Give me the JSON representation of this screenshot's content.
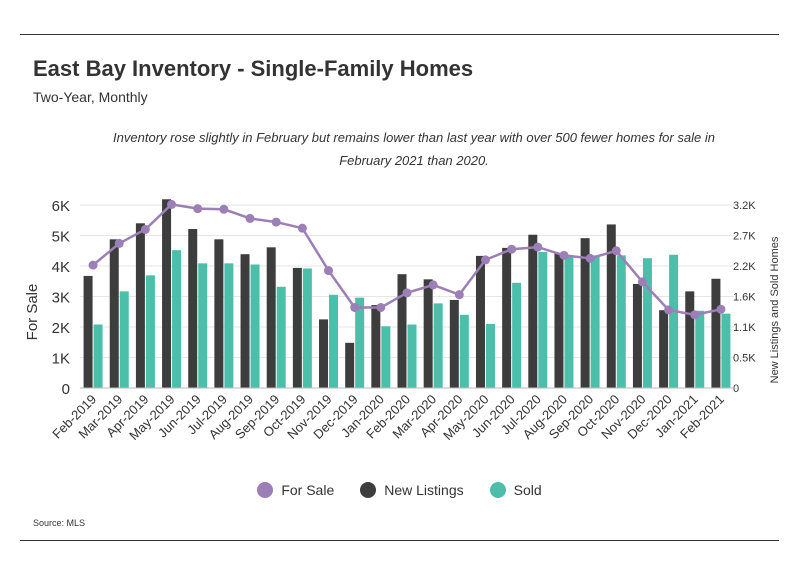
{
  "title": "East Bay Inventory - Single-Family Homes",
  "subtitle": "Two-Year, Monthly",
  "annotation": "Inventory rose slightly  in February but remains lower than last year with over 500 fewer homes for sale in February 2021 than 2020.",
  "source": "Source:  MLS",
  "colors": {
    "for_sale": "#9b7fb6",
    "new_listings": "#3d3d3d",
    "sold": "#4bbfaa"
  },
  "chart_data": {
    "type": "bar",
    "categories": [
      "Feb-2019",
      "Mar-2019",
      "Apr-2019",
      "May-2019",
      "Jun-2019",
      "Jul-2019",
      "Aug-2019",
      "Sep-2019",
      "Oct-2019",
      "Nov-2019",
      "Dec-2019",
      "Jan-2020",
      "Feb-2020",
      "Mar-2020",
      "Apr-2020",
      "May-2020",
      "Jun-2020",
      "Jul-2020",
      "Aug-2020",
      "Sep-2020",
      "Oct-2020",
      "Nov-2020",
      "Dec-2020",
      "Jan-2021",
      "Feb-2021"
    ],
    "ylabel": "For Sale",
    "y2label": "New Listings and Sold Homes",
    "ylim": [
      0,
      6000
    ],
    "y2lim": [
      0,
      3200
    ],
    "yticks": [
      "0",
      "1K",
      "2K",
      "3K",
      "4K",
      "5K",
      "6K"
    ],
    "y2ticks": [
      "0",
      "0.5K",
      "1.1K",
      "1.6K",
      "2.2K",
      "2.7K",
      "3.2K"
    ],
    "legend_position": "bottom",
    "series": [
      {
        "name": "For Sale",
        "type": "line",
        "axis": "left",
        "values": [
          4030,
          4740,
          5200,
          6020,
          5880,
          5860,
          5560,
          5440,
          5240,
          3850,
          2640,
          2640,
          3120,
          3380,
          3060,
          4200,
          4550,
          4620,
          4350,
          4250,
          4500,
          3480,
          2560,
          2400,
          2580
        ]
      },
      {
        "name": "New Listings",
        "type": "bar",
        "axis": "right",
        "values": [
          1960,
          2600,
          2880,
          3300,
          2780,
          2600,
          2340,
          2460,
          2100,
          1200,
          790,
          1450,
          1990,
          1900,
          1540,
          2310,
          2450,
          2680,
          2360,
          2620,
          2860,
          1820,
          1360,
          1690,
          1910
        ]
      },
      {
        "name": "Sold",
        "type": "bar",
        "axis": "right",
        "values": [
          1110,
          1690,
          1970,
          2410,
          2180,
          2180,
          2160,
          1770,
          2090,
          1630,
          1580,
          1080,
          1110,
          1480,
          1280,
          1120,
          1840,
          2380,
          2300,
          2320,
          2320,
          2270,
          2330,
          1350,
          1300
        ]
      }
    ]
  }
}
